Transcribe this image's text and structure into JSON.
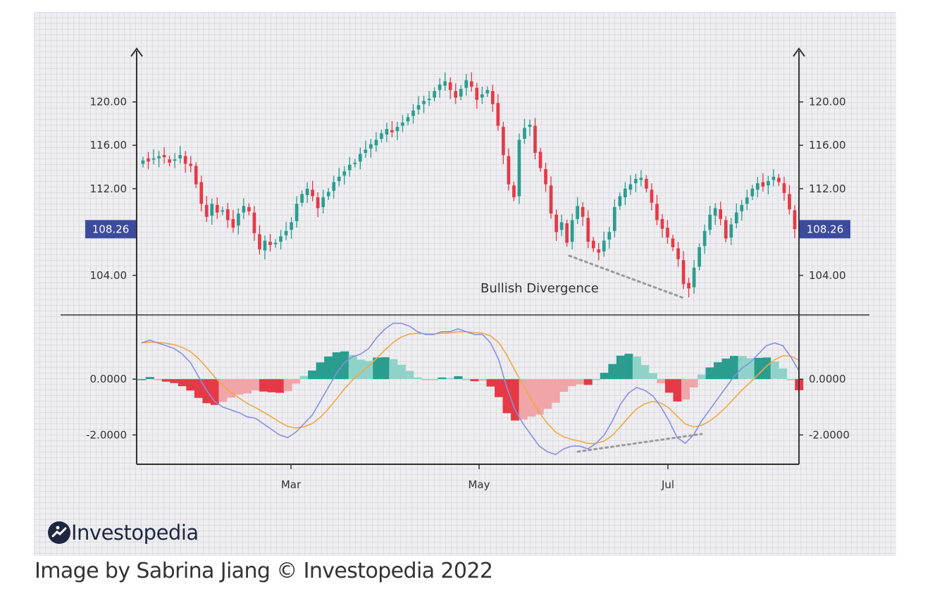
{
  "caption": "Image by Sabrina Jiang © Investopedia 2022",
  "logo": {
    "text": "Investopedia",
    "icon": "investopedia-logo-icon"
  },
  "colors": {
    "up": "#2a9d8f",
    "down": "#e63946",
    "up_light": "#8fd3c8",
    "down_light": "#f0a5a8",
    "macd_line": "#8a8fe0",
    "signal_line": "#f4a742",
    "tag": "#3d4b9e",
    "divergence": "#9a9a9a",
    "axis": "#333333"
  },
  "chart_data": [
    {
      "type": "candlestick",
      "x_tick_labels": [
        "Mar",
        "May",
        "Jul"
      ],
      "y_tick_labels": [
        "120.00",
        "116.00",
        "112.00",
        "104.00"
      ],
      "y_ticks": [
        120,
        116,
        112,
        104
      ],
      "ylim": [
        101,
        124.4
      ],
      "current_price": 108.26,
      "current_price_label": "108.26",
      "annotation": "Bullish Divergence",
      "closes": [
        114.6,
        114.5,
        114.8,
        115.0,
        114.9,
        114.4,
        114.7,
        115.1,
        114.3,
        114.1,
        112.4,
        110.6,
        109.4,
        110.6,
        109.8,
        110.0,
        109.1,
        108.4,
        109.7,
        110.4,
        109.9,
        107.9,
        106.4,
        107.2,
        106.8,
        107.0,
        107.6,
        108.1,
        108.9,
        110.6,
        111.5,
        112.0,
        111.3,
        110.2,
        111.2,
        111.7,
        112.6,
        113.1,
        113.6,
        114.2,
        114.4,
        115.2,
        115.6,
        116.1,
        116.5,
        117.1,
        117.5,
        117.2,
        117.7,
        118.1,
        118.6,
        119.2,
        119.7,
        120.1,
        120.3,
        121.0,
        121.6,
        121.9,
        121.1,
        120.4,
        121.2,
        122.0,
        121.4,
        120.2,
        120.7,
        121.1,
        119.8,
        117.8,
        115.1,
        112.4,
        111.2,
        116.5,
        117.6,
        117.9,
        115.3,
        113.9,
        112.4,
        109.7,
        108.0,
        108.9,
        107.0,
        109.1,
        110.4,
        109.4,
        107.1,
        106.5,
        106.1,
        107.2,
        108.0,
        110.3,
        111.3,
        112.0,
        112.4,
        112.9,
        113.0,
        112.0,
        110.7,
        109.1,
        108.3,
        107.5,
        106.6,
        105.5,
        103.2,
        102.8,
        104.7,
        106.6,
        108.1,
        109.6,
        110.2,
        109.2,
        107.4,
        108.7,
        109.8,
        110.5,
        111.2,
        112.0,
        112.5,
        112.2,
        112.7,
        113.1,
        112.6,
        111.6,
        110.1,
        108.26
      ],
      "opens": [
        114.3,
        114.8,
        114.7,
        114.8,
        115.1,
        114.7,
        114.6,
        114.8,
        115.0,
        114.3,
        114.1,
        112.6,
        110.5,
        109.5,
        110.5,
        109.9,
        110.1,
        109.2,
        108.6,
        109.8,
        110.3,
        109.8,
        107.8,
        106.3,
        107.1,
        106.9,
        107.1,
        107.7,
        108.2,
        109.0,
        110.7,
        111.4,
        111.9,
        111.2,
        110.3,
        111.3,
        111.8,
        112.7,
        113.2,
        113.7,
        114.3,
        114.5,
        115.3,
        115.7,
        116.0,
        116.6,
        117.0,
        117.4,
        117.3,
        117.8,
        118.2,
        118.7,
        119.3,
        119.8,
        120.2,
        120.4,
        121.1,
        121.5,
        121.8,
        121.0,
        120.5,
        121.3,
        121.9,
        121.3,
        120.4,
        120.8,
        121.0,
        119.9,
        117.7,
        115.0,
        112.3,
        111.3,
        116.6,
        117.7,
        117.8,
        115.4,
        113.8,
        112.3,
        109.6,
        108.2,
        108.8,
        107.1,
        109.2,
        110.3,
        109.3,
        107.2,
        106.4,
        106.2,
        107.3,
        108.1,
        110.4,
        111.2,
        111.9,
        112.5,
        112.8,
        112.9,
        111.9,
        110.6,
        109.2,
        108.4,
        107.4,
        106.5,
        105.4,
        103.3,
        102.9,
        104.8,
        106.7,
        108.2,
        109.5,
        110.1,
        109.1,
        107.5,
        108.8,
        109.9,
        110.6,
        111.3,
        111.9,
        112.6,
        112.3,
        112.8,
        113.0,
        112.5,
        111.5,
        110.0
      ],
      "macd_line": [
        1.3,
        1.4,
        1.3,
        1.2,
        1.1,
        0.9,
        0.6,
        0.1,
        -0.4,
        -0.8,
        -1.0,
        -1.1,
        -1.2,
        -1.35,
        -1.4,
        -1.6,
        -1.8,
        -2.0,
        -2.1,
        -1.9,
        -1.6,
        -1.3,
        -0.8,
        -0.3,
        0.2,
        0.6,
        0.8,
        0.9,
        1.1,
        1.5,
        1.8,
        2.0,
        2.0,
        1.9,
        1.7,
        1.6,
        1.6,
        1.7,
        1.7,
        1.8,
        1.7,
        1.6,
        1.6,
        1.3,
        0.7,
        -0.3,
        -1.1,
        -1.6,
        -2.0,
        -2.4,
        -2.6,
        -2.7,
        -2.5,
        -2.4,
        -2.4,
        -2.5,
        -2.3,
        -2.0,
        -1.5,
        -0.9,
        -0.5,
        -0.3,
        -0.4,
        -0.6,
        -1.0,
        -1.5,
        -2.1,
        -2.3,
        -2.0,
        -1.5,
        -1.1,
        -0.7,
        -0.3,
        0.1,
        0.4,
        0.6,
        0.9,
        1.2,
        1.3,
        1.2,
        0.8,
        0.3
      ]
    }
  ],
  "macd_panel": {
    "y_tick_labels": [
      "0.0000",
      "-2.0000"
    ],
    "y_ticks": [
      0,
      -2
    ],
    "ylim": [
      -2.9,
      2.1
    ]
  }
}
